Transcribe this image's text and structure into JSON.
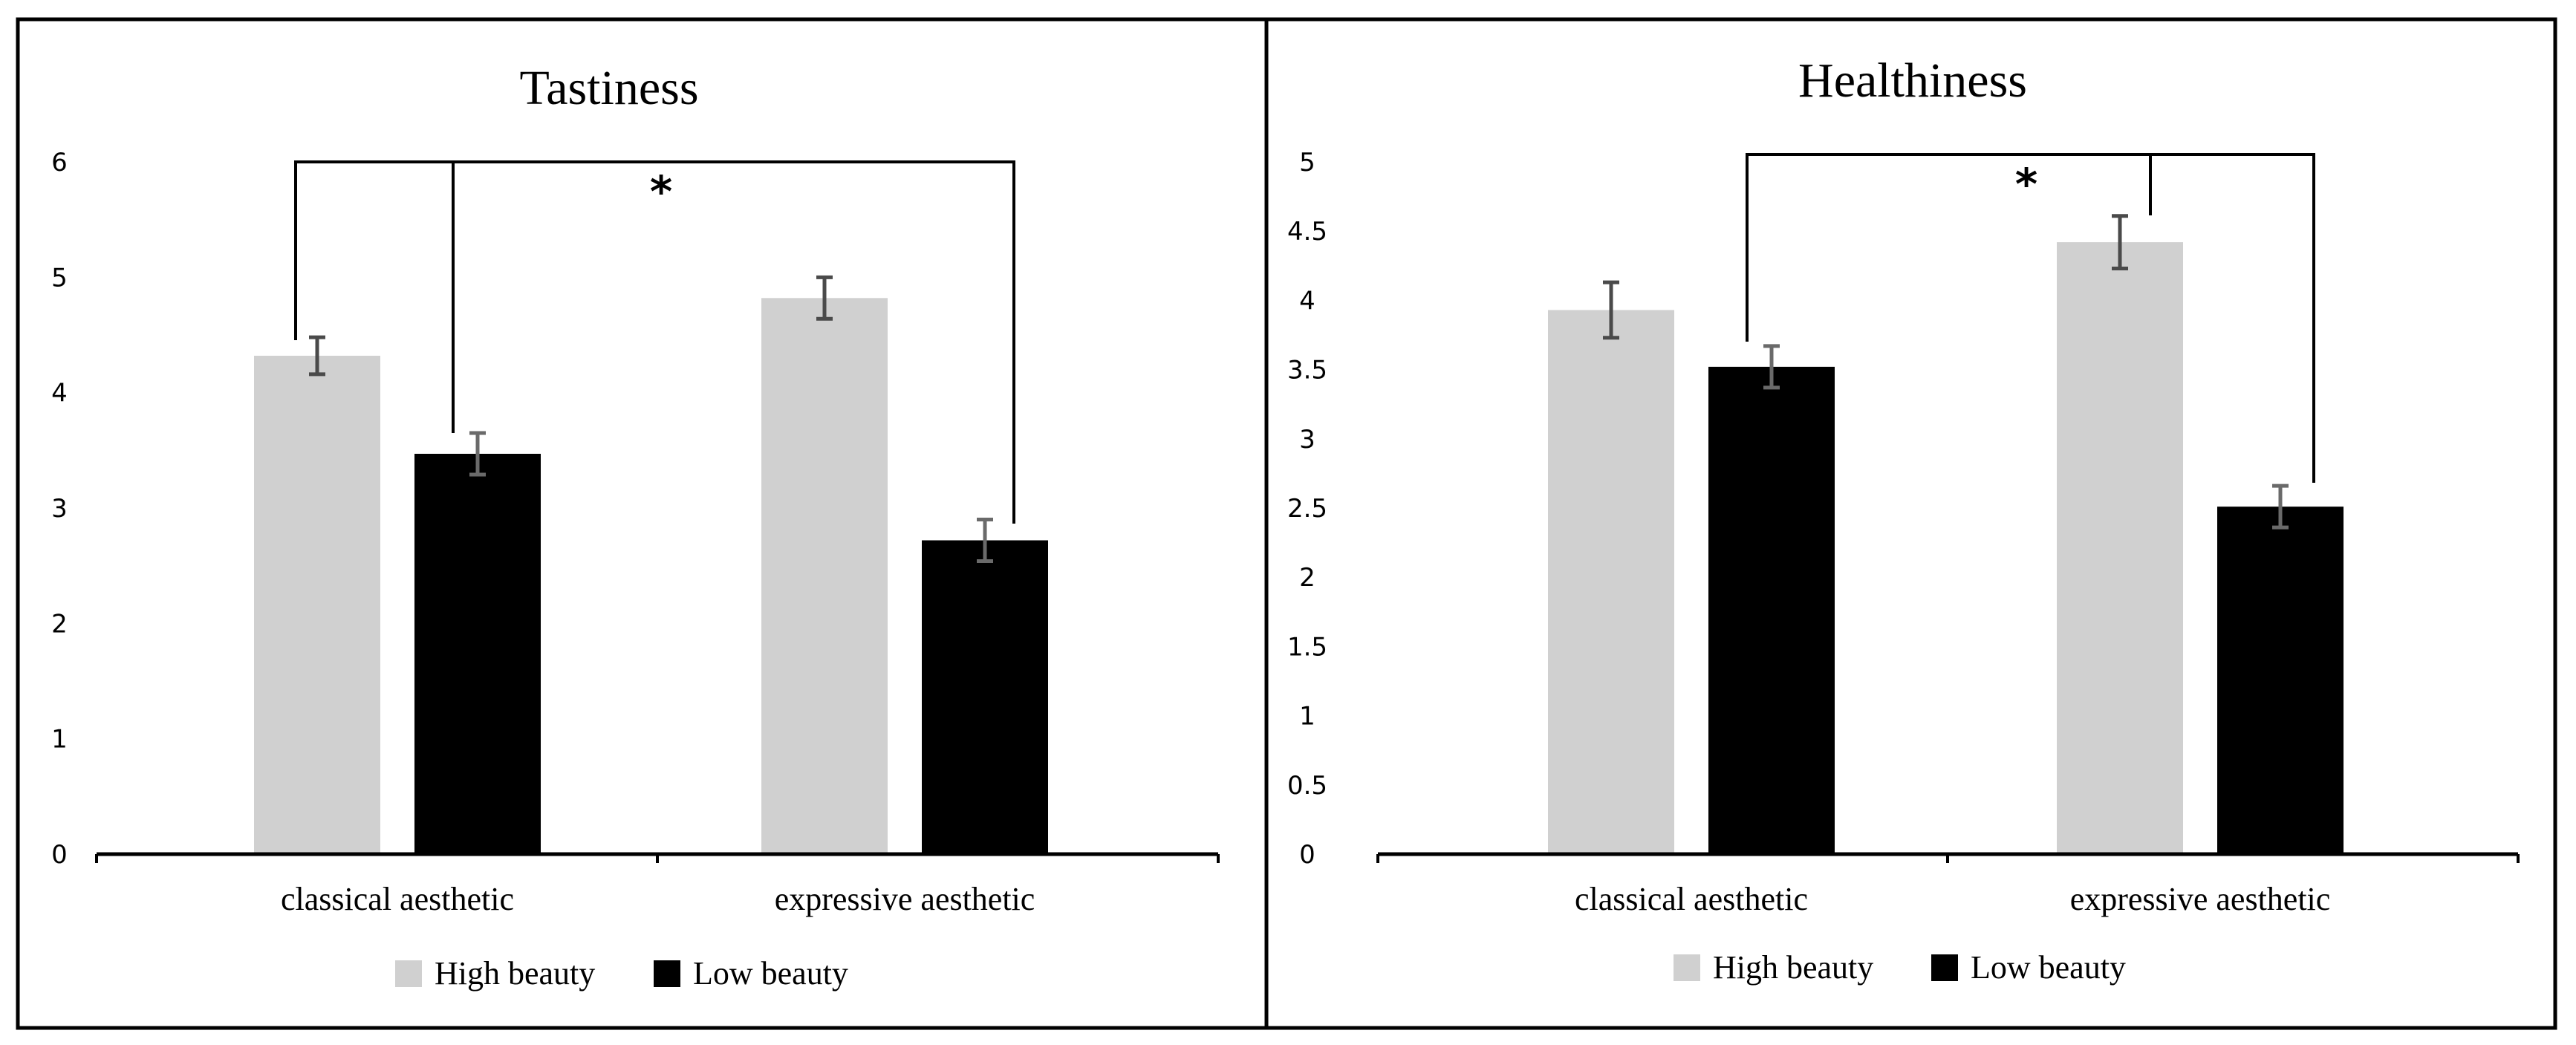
{
  "chart_data": [
    {
      "type": "bar",
      "title": "Tastiness",
      "categories": [
        "classical aesthetic",
        "expressive aesthetic"
      ],
      "series": [
        {
          "name": "High beauty",
          "color": "#d0d0d0",
          "values": [
            4.32,
            4.82
          ],
          "errors": [
            0.16,
            0.18
          ]
        },
        {
          "name": "Low beauty",
          "color": "#000000",
          "values": [
            3.47,
            2.72
          ],
          "errors": [
            0.18,
            0.18
          ]
        }
      ],
      "ylim": [
        0,
        6
      ],
      "yticks": [
        "0",
        "1",
        "2",
        "3",
        "4",
        "5",
        "6"
      ],
      "xlabel": "",
      "ylabel": "",
      "legend": "bottom",
      "annotation": "*"
    },
    {
      "type": "bar",
      "title": "Healthiness",
      "categories": [
        "classical aesthetic",
        "expressive aesthetic"
      ],
      "series": [
        {
          "name": "High beauty",
          "color": "#d0d0d0",
          "values": [
            3.93,
            4.42
          ],
          "errors": [
            0.2,
            0.19
          ]
        },
        {
          "name": "Low beauty",
          "color": "#000000",
          "values": [
            3.52,
            2.51
          ],
          "errors": [
            0.15,
            0.15
          ]
        }
      ],
      "ylim": [
        0,
        5
      ],
      "yticks": [
        "0",
        "0.5",
        "1",
        "1.5",
        "2",
        "2.5",
        "3",
        "3.5",
        "4",
        "4.5",
        "5"
      ],
      "xlabel": "",
      "ylabel": "",
      "legend": "bottom",
      "annotation": "*"
    }
  ]
}
